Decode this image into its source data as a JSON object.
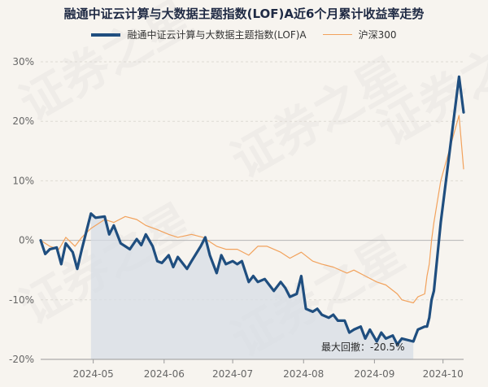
{
  "chart_data": {
    "type": "line",
    "title": "融通中证云计算与大数据主题指数(LOF)A近6个月累计收益率走势",
    "ylim": [
      -20,
      30
    ],
    "yticks": [
      30,
      20,
      10,
      0,
      -10,
      -20
    ],
    "ytick_labels": [
      "30%",
      "20%",
      "10%",
      "0%",
      "-10%",
      "-20%"
    ],
    "x_range": [
      "2024-04-08",
      "2024-10-10"
    ],
    "xticks": [
      "2024-05-01",
      "2024-06-01",
      "2024-07-01",
      "2024-08-01",
      "2024-09-01",
      "2024-10-01"
    ],
    "xtick_labels": [
      "2024-05",
      "2024-06",
      "2024-07",
      "2024-08",
      "2024-09",
      "2024-10"
    ],
    "legend_position": "top-center",
    "watermark_text": "证券之星",
    "colors": {
      "fund": "#1f4e7f",
      "hs300": "#f2a25c",
      "shade": "#d7dee6"
    },
    "annotation": {
      "label": "最大回撤：",
      "value": "-20.5%"
    },
    "drawdown_window": [
      "2024-04-30",
      "2024-09-18"
    ],
    "series": [
      {
        "name": "融通中证云计算与大数据主题指数(LOF)A",
        "points": [
          [
            "2024-04-08",
            0.0
          ],
          [
            "2024-04-10",
            -2.3
          ],
          [
            "2024-04-12",
            -1.5
          ],
          [
            "2024-04-15",
            -1.2
          ],
          [
            "2024-04-17",
            -4.0
          ],
          [
            "2024-04-19",
            -0.5
          ],
          [
            "2024-04-22",
            -2.0
          ],
          [
            "2024-04-24",
            -4.8
          ],
          [
            "2024-04-26",
            -1.5
          ],
          [
            "2024-04-30",
            4.5
          ],
          [
            "2024-05-02",
            3.8
          ],
          [
            "2024-05-06",
            4.0
          ],
          [
            "2024-05-08",
            1.0
          ],
          [
            "2024-05-10",
            2.5
          ],
          [
            "2024-05-13",
            -0.5
          ],
          [
            "2024-05-15",
            -1.0
          ],
          [
            "2024-05-17",
            -1.5
          ],
          [
            "2024-05-20",
            0.2
          ],
          [
            "2024-05-22",
            -0.8
          ],
          [
            "2024-05-24",
            1.0
          ],
          [
            "2024-05-27",
            -1.0
          ],
          [
            "2024-05-29",
            -3.5
          ],
          [
            "2024-05-31",
            -3.8
          ],
          [
            "2024-06-03",
            -2.5
          ],
          [
            "2024-06-05",
            -4.5
          ],
          [
            "2024-06-07",
            -2.8
          ],
          [
            "2024-06-11",
            -4.8
          ],
          [
            "2024-06-13",
            -3.5
          ],
          [
            "2024-06-17",
            -1.0
          ],
          [
            "2024-06-19",
            0.5
          ],
          [
            "2024-06-21",
            -2.5
          ],
          [
            "2024-06-24",
            -5.5
          ],
          [
            "2024-06-26",
            -2.5
          ],
          [
            "2024-06-28",
            -4.0
          ],
          [
            "2024-07-01",
            -3.5
          ],
          [
            "2024-07-03",
            -4.0
          ],
          [
            "2024-07-05",
            -3.5
          ],
          [
            "2024-07-08",
            -7.0
          ],
          [
            "2024-07-10",
            -6.0
          ],
          [
            "2024-07-12",
            -7.0
          ],
          [
            "2024-07-15",
            -6.5
          ],
          [
            "2024-07-17",
            -7.5
          ],
          [
            "2024-07-19",
            -8.5
          ],
          [
            "2024-07-22",
            -7.0
          ],
          [
            "2024-07-24",
            -8.0
          ],
          [
            "2024-07-26",
            -9.5
          ],
          [
            "2024-07-29",
            -9.0
          ],
          [
            "2024-07-31",
            -6.0
          ],
          [
            "2024-08-02",
            -11.5
          ],
          [
            "2024-08-05",
            -12.0
          ],
          [
            "2024-08-07",
            -11.5
          ],
          [
            "2024-08-09",
            -12.5
          ],
          [
            "2024-08-12",
            -13.0
          ],
          [
            "2024-08-14",
            -12.5
          ],
          [
            "2024-08-16",
            -13.5
          ],
          [
            "2024-08-19",
            -13.5
          ],
          [
            "2024-08-21",
            -15.5
          ],
          [
            "2024-08-23",
            -15.0
          ],
          [
            "2024-08-26",
            -14.5
          ],
          [
            "2024-08-28",
            -16.5
          ],
          [
            "2024-08-30",
            -15.0
          ],
          [
            "2024-09-02",
            -17.0
          ],
          [
            "2024-09-04",
            -15.5
          ],
          [
            "2024-09-06",
            -16.5
          ],
          [
            "2024-09-09",
            -16.0
          ],
          [
            "2024-09-11",
            -17.5
          ],
          [
            "2024-09-13",
            -16.5
          ],
          [
            "2024-09-18",
            -17.0
          ],
          [
            "2024-09-20",
            -15.0
          ],
          [
            "2024-09-23",
            -14.5
          ],
          [
            "2024-09-24",
            -14.5
          ],
          [
            "2024-09-25",
            -13.0
          ],
          [
            "2024-09-26",
            -10.0
          ],
          [
            "2024-09-27",
            -8.5
          ],
          [
            "2024-09-30",
            3.0
          ],
          [
            "2024-10-08",
            27.5
          ],
          [
            "2024-10-10",
            21.5
          ]
        ]
      },
      {
        "name": "沪深300",
        "points": [
          [
            "2024-04-08",
            0.0
          ],
          [
            "2024-04-12",
            -1.0
          ],
          [
            "2024-04-16",
            -1.5
          ],
          [
            "2024-04-19",
            0.5
          ],
          [
            "2024-04-23",
            -1.0
          ],
          [
            "2024-04-26",
            0.5
          ],
          [
            "2024-04-30",
            2.0
          ],
          [
            "2024-05-06",
            3.5
          ],
          [
            "2024-05-10",
            3.0
          ],
          [
            "2024-05-15",
            4.0
          ],
          [
            "2024-05-20",
            3.5
          ],
          [
            "2024-05-24",
            2.5
          ],
          [
            "2024-05-29",
            1.8
          ],
          [
            "2024-06-03",
            1.0
          ],
          [
            "2024-06-07",
            0.5
          ],
          [
            "2024-06-13",
            1.0
          ],
          [
            "2024-06-18",
            0.5
          ],
          [
            "2024-06-24",
            -1.0
          ],
          [
            "2024-06-28",
            -1.5
          ],
          [
            "2024-07-03",
            -1.5
          ],
          [
            "2024-07-08",
            -2.5
          ],
          [
            "2024-07-12",
            -1.0
          ],
          [
            "2024-07-16",
            -1.0
          ],
          [
            "2024-07-22",
            -2.0
          ],
          [
            "2024-07-26",
            -3.0
          ],
          [
            "2024-07-31",
            -2.0
          ],
          [
            "2024-08-05",
            -3.5
          ],
          [
            "2024-08-09",
            -4.0
          ],
          [
            "2024-08-14",
            -4.5
          ],
          [
            "2024-08-20",
            -5.5
          ],
          [
            "2024-08-23",
            -5.0
          ],
          [
            "2024-08-28",
            -6.0
          ],
          [
            "2024-09-02",
            -7.0
          ],
          [
            "2024-09-06",
            -7.5
          ],
          [
            "2024-09-11",
            -9.0
          ],
          [
            "2024-09-13",
            -10.0
          ],
          [
            "2024-09-18",
            -10.5
          ],
          [
            "2024-09-20",
            -9.5
          ],
          [
            "2024-09-23",
            -9.0
          ],
          [
            "2024-09-24",
            -6.0
          ],
          [
            "2024-09-25",
            -4.0
          ],
          [
            "2024-09-26",
            0.0
          ],
          [
            "2024-09-27",
            3.0
          ],
          [
            "2024-09-30",
            10.0
          ],
          [
            "2024-10-08",
            21.0
          ],
          [
            "2024-10-10",
            12.0
          ]
        ]
      }
    ]
  }
}
